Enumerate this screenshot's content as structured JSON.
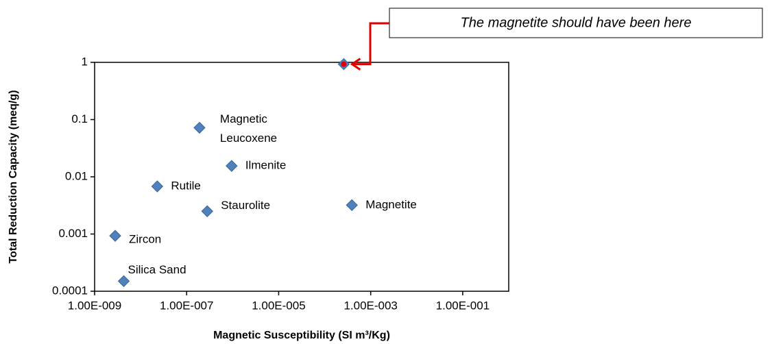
{
  "chart_data": {
    "type": "scatter",
    "x_label": "Magnetic Susceptibility (SI m³/Kg)",
    "y_label": "Total Reduction Capacity  (meq/g)",
    "x_log": true,
    "y_log": true,
    "xlim": [
      1e-09,
      1
    ],
    "ylim": [
      0.0001,
      1
    ],
    "xticks": [
      {
        "value": 1e-09,
        "label": "1.00E-009"
      },
      {
        "value": 1e-07,
        "label": "1.00E-007"
      },
      {
        "value": 1e-05,
        "label": "1.00E-005"
      },
      {
        "value": 0.001,
        "label": "1.00E-003"
      },
      {
        "value": 0.1,
        "label": "1.00E-001"
      }
    ],
    "yticks": [
      0.0001,
      0.001,
      0.01,
      0.1,
      1
    ],
    "color": "#4f81bd",
    "x": [
      1.9e-07,
      9.5e-07,
      2.3e-08,
      2.8e-07,
      0.00039,
      2.8e-09,
      4.3e-09,
      0.00026
    ],
    "y": [
      0.072,
      0.0155,
      0.0068,
      0.0025,
      0.0032,
      0.00093,
      0.00015,
      0.93
    ],
    "point_labels": [
      [
        "Magnetic",
        "Leucoxene"
      ],
      [
        "Ilmenite"
      ],
      [
        "Rutile"
      ],
      [
        "Staurolite"
      ],
      [
        "Magnetite"
      ],
      [
        "Zircon"
      ],
      [
        "Silica Sand"
      ],
      null
    ],
    "annotation": {
      "text": "The magnetite should have been here",
      "x": 0.00026,
      "y": 0.93,
      "color": "#e00000"
    }
  }
}
